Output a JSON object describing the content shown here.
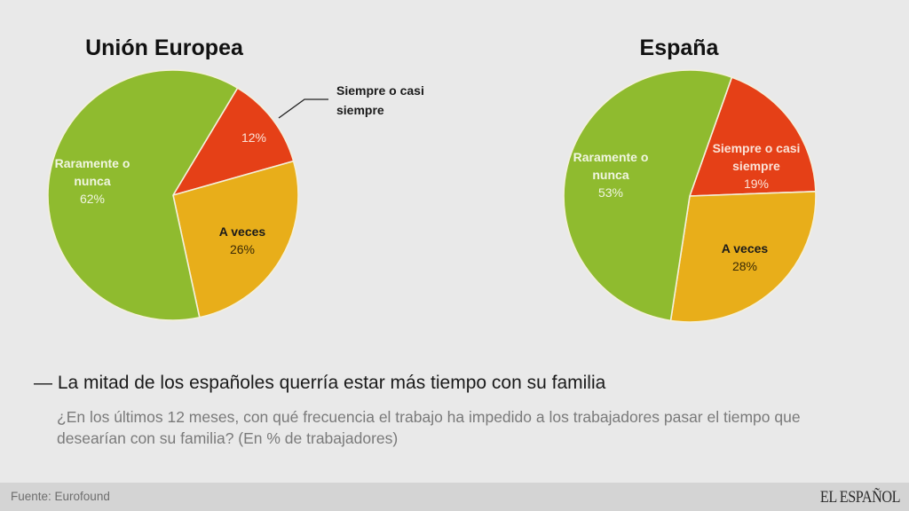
{
  "colors": {
    "siempre": "#e54017",
    "a_veces": "#e8ae1a",
    "raramente": "#8fbb2f",
    "slice_border": "#f4f0dc",
    "background": "#e9e9e9"
  },
  "chart_data": [
    {
      "type": "pie",
      "title": "Unión Europea",
      "start_angle_deg": 31,
      "slices": [
        {
          "label": "Siempre o casi siempre",
          "value": 12,
          "value_label": "12%",
          "color_key": "siempre"
        },
        {
          "label": "A veces",
          "value": 26,
          "value_label": "26%",
          "color_key": "a_veces"
        },
        {
          "label": "Raramente o nunca",
          "value": 62,
          "value_label": "62%",
          "color_key": "raramente"
        }
      ],
      "annotations": [
        "Siempre o casi",
        "siempre"
      ]
    },
    {
      "type": "pie",
      "title": "España",
      "start_angle_deg": 19.5,
      "slices": [
        {
          "label": "Siempre o casi siempre",
          "value": 19,
          "value_label": "19%",
          "color_key": "siempre"
        },
        {
          "label": "A veces",
          "value": 28,
          "value_label": "28%",
          "color_key": "a_veces"
        },
        {
          "label": "Raramente o nunca",
          "value": 53,
          "value_label": "53%",
          "color_key": "raramente"
        }
      ]
    }
  ],
  "labels": {
    "eu": {
      "siempre_pct": "12%",
      "callout_line1": "Siempre o casi",
      "callout_line2": "siempre",
      "aveces_name": "A veces",
      "aveces_pct": "26%",
      "rar_line1": "Raramente o",
      "rar_line2": "nunca",
      "rar_pct": "62%"
    },
    "es": {
      "siempre_line1": "Siempre o casi",
      "siempre_line2": "siempre",
      "siempre_pct": "19%",
      "aveces_name": "A veces",
      "aveces_pct": "28%",
      "rar_line1": "Raramente o",
      "rar_line2": "nunca",
      "rar_pct": "53%"
    }
  },
  "headline": "— La mitad de los españoles querría estar más tiempo con su familia",
  "subtitle": "¿En los últimos 12 meses, con qué frecuencia el trabajo ha impedido a los trabajadores pasar el tiempo que desearían con su familia? (En % de trabajadores)",
  "footer": {
    "source": "Fuente: Eurofound",
    "brand": "EL ESPAÑOL"
  }
}
